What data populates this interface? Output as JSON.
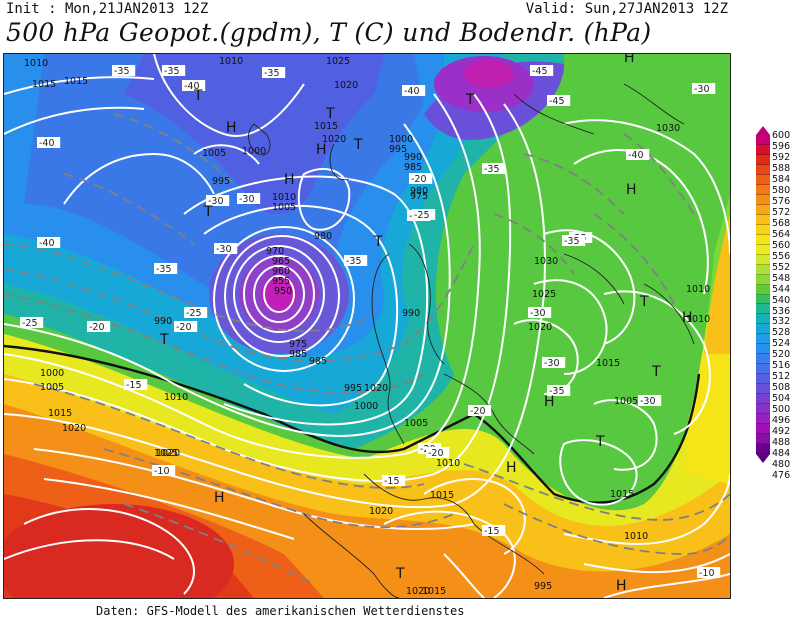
{
  "header": {
    "init": "Init : Mon,21JAN2013 12Z",
    "valid": "Valid: Sun,27JAN2013 12Z",
    "title": "500 hPa Geopot.(gpdm), T (C) und Bodendr. (hPa)"
  },
  "footer": "Daten: GFS-Modell des amerikanischen Wetterdienstes",
  "colorbar": {
    "labels": [
      "600",
      "596",
      "592",
      "588",
      "584",
      "580",
      "576",
      "572",
      "568",
      "564",
      "560",
      "556",
      "552",
      "548",
      "544",
      "540",
      "536",
      "532",
      "528",
      "524",
      "520",
      "516",
      "512",
      "508",
      "504",
      "500",
      "496",
      "492",
      "488",
      "484",
      "480",
      "476"
    ],
    "colors": [
      "#c8006e",
      "#d8102a",
      "#e02a1a",
      "#e84818",
      "#ee6018",
      "#f27818",
      "#f49018",
      "#f6a818",
      "#f8c018",
      "#f8d418",
      "#f4e418",
      "#e8ec20",
      "#cfe830",
      "#aee03a",
      "#88d83a",
      "#5ecc3a",
      "#34c060",
      "#20b890",
      "#18b0b8",
      "#18a8d8",
      "#209ce8",
      "#2890ec",
      "#3880ec",
      "#4870e8",
      "#5860e0",
      "#6850d8",
      "#7840d0",
      "#8830c8",
      "#9820c0",
      "#a010b8",
      "#8810a0",
      "#6a0090"
    ]
  },
  "map": {
    "pressure_labels": [
      {
        "t": "1010"
      },
      {
        "t": "1015"
      },
      {
        "t": "1010"
      },
      {
        "t": "1025"
      },
      {
        "t": "1020"
      },
      {
        "t": "1015"
      },
      {
        "t": "1020"
      },
      {
        "t": "1005"
      },
      {
        "t": "1000"
      },
      {
        "t": "995"
      },
      {
        "t": "1010"
      },
      {
        "t": "1005"
      },
      {
        "t": "1000"
      },
      {
        "t": "995"
      },
      {
        "t": "990"
      },
      {
        "t": "985"
      },
      {
        "t": "980"
      },
      {
        "t": "975"
      },
      {
        "t": "970"
      },
      {
        "t": "965"
      },
      {
        "t": "960"
      },
      {
        "t": "955"
      },
      {
        "t": "950"
      },
      {
        "t": "980"
      },
      {
        "t": "975"
      },
      {
        "t": "985"
      },
      {
        "t": "990"
      },
      {
        "t": "1030"
      },
      {
        "t": "1030"
      },
      {
        "t": "1025"
      },
      {
        "t": "1020"
      },
      {
        "t": "1015"
      },
      {
        "t": "1010"
      },
      {
        "t": "1010"
      },
      {
        "t": "1005"
      },
      {
        "t": "995"
      },
      {
        "t": "1000"
      },
      {
        "t": "1005"
      },
      {
        "t": "985"
      },
      {
        "t": "990"
      },
      {
        "t": "1000"
      },
      {
        "t": "1005"
      },
      {
        "t": "1010"
      },
      {
        "t": "1015"
      },
      {
        "t": "1020"
      },
      {
        "t": "1025"
      },
      {
        "t": "1010"
      },
      {
        "t": "1015"
      },
      {
        "t": "1020"
      },
      {
        "t": "1020"
      },
      {
        "t": "1015"
      },
      {
        "t": "1010"
      },
      {
        "t": "1015"
      },
      {
        "t": "995"
      },
      {
        "t": "1020"
      },
      {
        "t": "1015"
      },
      {
        "t": "980"
      },
      {
        "t": "1020"
      }
    ],
    "temperature_labels": [
      {
        "t": "-35"
      },
      {
        "t": "-35"
      },
      {
        "t": "-40"
      },
      {
        "t": "-45"
      },
      {
        "t": "-40"
      },
      {
        "t": "-35"
      },
      {
        "t": "-30"
      },
      {
        "t": "-40"
      },
      {
        "t": "-35"
      },
      {
        "t": "-30"
      },
      {
        "t": "-25"
      },
      {
        "t": "-20"
      },
      {
        "t": "-25"
      },
      {
        "t": "-20"
      },
      {
        "t": "-15"
      },
      {
        "t": "-10"
      },
      {
        "t": "-30"
      },
      {
        "t": "-35"
      },
      {
        "t": "-25"
      },
      {
        "t": "-20"
      },
      {
        "t": "-35"
      },
      {
        "t": "-40"
      },
      {
        "t": "-45"
      },
      {
        "t": "-30"
      },
      {
        "t": "-35"
      },
      {
        "t": "-35"
      },
      {
        "t": "-30"
      },
      {
        "t": "-30"
      },
      {
        "t": "-35"
      },
      {
        "t": "-25"
      },
      {
        "t": "-20"
      },
      {
        "t": "-20"
      },
      {
        "t": "-15"
      },
      {
        "t": "-20"
      },
      {
        "t": "-15"
      },
      {
        "t": "-10"
      },
      {
        "t": "-30"
      },
      {
        "t": "-40"
      }
    ],
    "pressure_centers": [
      {
        "t": "H"
      },
      {
        "t": "H"
      },
      {
        "t": "H"
      },
      {
        "t": "H"
      },
      {
        "t": "H"
      },
      {
        "t": "H"
      },
      {
        "t": "H"
      },
      {
        "t": "H"
      },
      {
        "t": "H"
      },
      {
        "t": "H"
      },
      {
        "t": "T"
      },
      {
        "t": "T"
      },
      {
        "t": "T"
      },
      {
        "t": "T"
      },
      {
        "t": "T"
      },
      {
        "t": "T"
      },
      {
        "t": "T"
      },
      {
        "t": "T"
      },
      {
        "t": "T"
      },
      {
        "t": "T"
      },
      {
        "t": "T"
      }
    ]
  }
}
